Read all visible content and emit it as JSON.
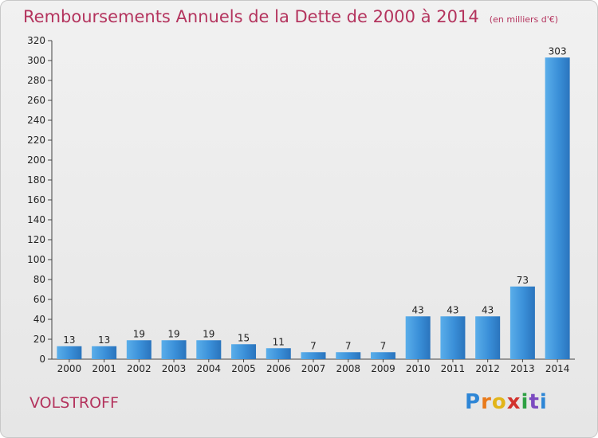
{
  "header": {
    "title": "Remboursements Annuels de la Dette de 2000 à 2014",
    "subtitle": "(en milliers d'€)"
  },
  "footer": {
    "commune": "VOLSTROFF",
    "logo_text": "Proxiti"
  },
  "chart_data": {
    "type": "bar",
    "categories": [
      "2000",
      "2001",
      "2002",
      "2003",
      "2004",
      "2005",
      "2006",
      "2007",
      "2008",
      "2009",
      "2010",
      "2011",
      "2012",
      "2013",
      "2014"
    ],
    "values": [
      13,
      13,
      19,
      19,
      19,
      15,
      11,
      7,
      7,
      7,
      43,
      43,
      43,
      73,
      303
    ],
    "title": "Remboursements Annuels de la Dette de 2000 à 2014",
    "unit": "(en milliers d'€)",
    "ylim": [
      0,
      320
    ],
    "yticks": [
      0,
      20,
      40,
      60,
      80,
      100,
      120,
      140,
      160,
      180,
      200,
      220,
      240,
      260,
      280,
      300,
      320
    ],
    "grid": false,
    "bar_color": "#3a8fd8"
  }
}
